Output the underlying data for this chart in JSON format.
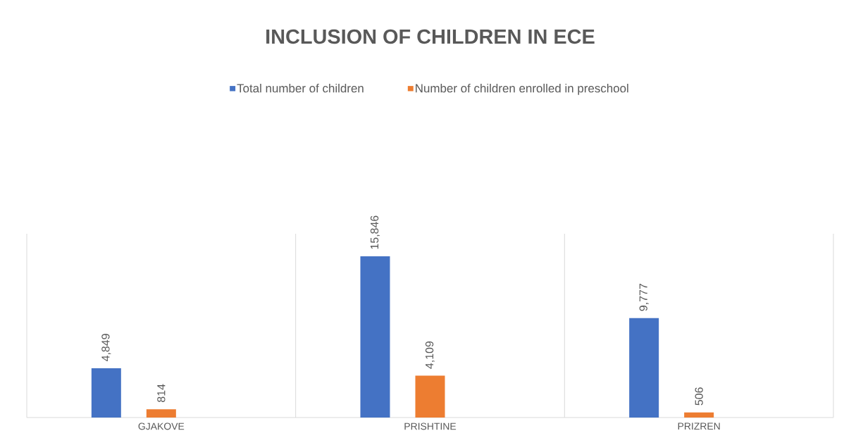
{
  "chart_data": {
    "type": "bar",
    "title": "INCLUSION OF CHILDREN IN ECE",
    "categories": [
      "GJAKOVE",
      "PRISHTINE",
      "PRIZREN"
    ],
    "series": [
      {
        "name": "Total number of children",
        "color": "#4472c4",
        "values": [
          4849,
          15846,
          9777
        ],
        "value_labels": [
          "4,849",
          "15,846",
          "9,777"
        ]
      },
      {
        "name": "Number of children enrolled in preschool",
        "color": "#ed7d31",
        "values": [
          814,
          4109,
          506
        ],
        "value_labels": [
          "814",
          "4,109",
          "506"
        ]
      }
    ],
    "grid": "x",
    "legend": "top"
  }
}
